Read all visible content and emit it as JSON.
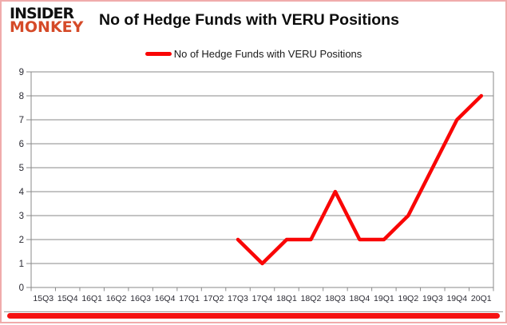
{
  "brand": {
    "line1": "INSIDER",
    "line2": "MONKEY",
    "line1_color": "#111111",
    "line2_color": "#d54a28"
  },
  "header": {
    "title": "No of Hedge Funds with VERU Positions"
  },
  "legend": {
    "label": "No of Hedge Funds with VERU Positions",
    "swatch_color": "#f90606"
  },
  "chart_data": {
    "type": "line",
    "title": "No of Hedge Funds with VERU Positions",
    "categories": [
      "15Q3",
      "15Q4",
      "16Q1",
      "16Q2",
      "16Q3",
      "16Q4",
      "17Q1",
      "17Q2",
      "17Q3",
      "17Q4",
      "18Q1",
      "18Q2",
      "18Q3",
      "18Q4",
      "19Q1",
      "19Q2",
      "19Q3",
      "19Q4",
      "20Q1"
    ],
    "series": [
      {
        "name": "No of Hedge Funds with VERU Positions",
        "color": "#f90606",
        "values": [
          null,
          null,
          null,
          null,
          null,
          null,
          null,
          null,
          2,
          1,
          2,
          2,
          4,
          2,
          2,
          3,
          5,
          7,
          8
        ]
      }
    ],
    "xlabel": "",
    "ylabel": "",
    "ylim": [
      0,
      9
    ],
    "ytick_step": 1,
    "grid": true,
    "legend_position": "top-center",
    "grid_color": "#8a8a8a",
    "axis_color": "#8a8a8a",
    "label_color": "#2a2a33"
  },
  "frame": {
    "border_color": "#f0abab",
    "bottom_bar_color": "#f51212",
    "content_line_color": "#9b9b9b"
  }
}
